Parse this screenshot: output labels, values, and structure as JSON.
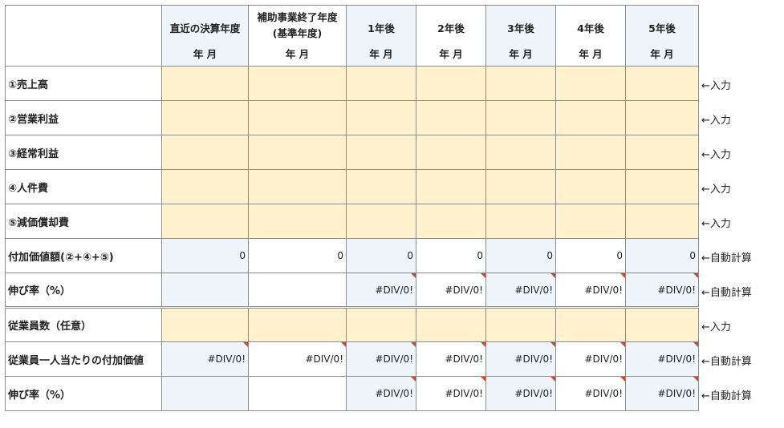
{
  "header": {
    "columns": [
      {
        "title": "直近の決算年度",
        "sub": "年 月"
      },
      {
        "title": "補助事業終了年度",
        "title2": "(基準年度)",
        "sub": "年 月"
      },
      {
        "title": "1年後",
        "sub": "年 月"
      },
      {
        "title": "2年後",
        "sub": "年 月"
      },
      {
        "title": "3年後",
        "sub": "年 月"
      },
      {
        "title": "4年後",
        "sub": "年 月"
      },
      {
        "title": "5年後",
        "sub": "年 月"
      }
    ]
  },
  "rows": [
    {
      "label": "①売上高",
      "note": "←入力",
      "values": [
        "",
        "",
        "",
        "",
        "",
        "",
        ""
      ]
    },
    {
      "label": "②営業利益",
      "note": "←入力",
      "values": [
        "",
        "",
        "",
        "",
        "",
        "",
        ""
      ]
    },
    {
      "label": "③経常利益",
      "note": "←入力",
      "values": [
        "",
        "",
        "",
        "",
        "",
        "",
        ""
      ]
    },
    {
      "label": "④人件費",
      "note": "←入力",
      "values": [
        "",
        "",
        "",
        "",
        "",
        "",
        ""
      ]
    },
    {
      "label": "⑤減価償却費",
      "note": "←入力",
      "values": [
        "",
        "",
        "",
        "",
        "",
        "",
        ""
      ]
    },
    {
      "label": "付加価値額(②+④+⑤)",
      "note": "←自動計算",
      "values": [
        "0",
        "0",
        "0",
        "0",
        "0",
        "0",
        "0"
      ]
    },
    {
      "label": "伸び率（%）",
      "note": "←自動計算",
      "values": [
        "",
        "",
        "#DIV/0!",
        "#DIV/0!",
        "#DIV/0!",
        "#DIV/0!",
        "#DIV/0!"
      ]
    },
    {
      "label": "従業員数（任意）",
      "note": "←入力",
      "values": [
        "",
        "",
        "",
        "",
        "",
        "",
        ""
      ]
    },
    {
      "label": "従業員一人当たりの付加価値",
      "note": "←自動計算",
      "values": [
        "#DIV/0!",
        "#DIV/0!",
        "#DIV/0!",
        "#DIV/0!",
        "#DIV/0!",
        "#DIV/0!",
        "#DIV/0!"
      ]
    },
    {
      "label": "伸び率（%）",
      "note": "←自動計算",
      "values": [
        "",
        "",
        "#DIV/0!",
        "#DIV/0!",
        "#DIV/0!",
        "#DIV/0!",
        "#DIV/0!"
      ]
    }
  ],
  "colors": {
    "input": "#fff2cc",
    "shade": "#eef6fb",
    "error_marker": "#d24726"
  }
}
